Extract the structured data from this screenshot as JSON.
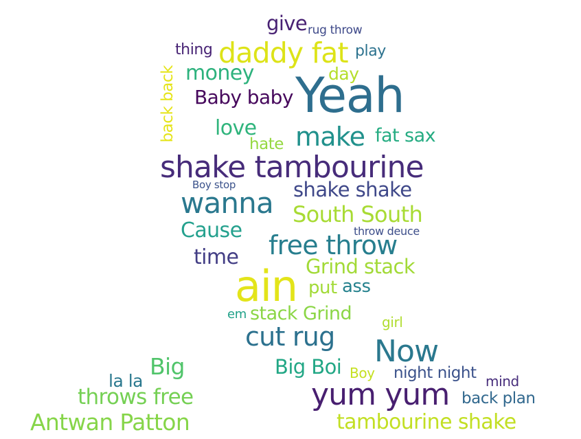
{
  "words": [
    {
      "text": "Yeah",
      "color": "#2e6e8e"
    },
    {
      "text": "ain",
      "color": "#e3e41a"
    },
    {
      "text": "shake tambourine",
      "color": "#472c7a"
    },
    {
      "text": "yum yum",
      "color": "#481f70"
    },
    {
      "text": "daddy fat",
      "color": "#dde318"
    },
    {
      "text": "wanna",
      "color": "#2a788e"
    },
    {
      "text": "free throw",
      "color": "#277e8e"
    },
    {
      "text": "Now",
      "color": "#2a788e"
    },
    {
      "text": "cut rug",
      "color": "#2c718e"
    },
    {
      "text": "make",
      "color": "#21918c"
    },
    {
      "text": "tambourine shake",
      "color": "#c2df23"
    },
    {
      "text": "Antwan Patton",
      "color": "#86d549"
    },
    {
      "text": "throws free",
      "color": "#75d054"
    },
    {
      "text": "South South",
      "color": "#a8db34"
    },
    {
      "text": "Grind stack",
      "color": "#a2da37"
    },
    {
      "text": "shake shake",
      "color": "#3f4889"
    },
    {
      "text": "money",
      "color": "#2db27d"
    },
    {
      "text": "Baby baby",
      "color": "#46085c"
    },
    {
      "text": "Cause",
      "color": "#25a18e"
    },
    {
      "text": "time",
      "color": "#433e85"
    },
    {
      "text": "love",
      "color": "#2fb47c"
    },
    {
      "text": "fat sax",
      "color": "#25ac82"
    },
    {
      "text": "Big",
      "color": "#50c46a"
    },
    {
      "text": "Big Boi",
      "color": "#22a785"
    },
    {
      "text": "stack Grind",
      "color": "#8bd646"
    },
    {
      "text": "give",
      "color": "#482173"
    },
    {
      "text": "thing",
      "color": "#482475"
    },
    {
      "text": "play",
      "color": "#2c728e"
    },
    {
      "text": "day",
      "color": "#b5de2b"
    },
    {
      "text": "hate",
      "color": "#95d840"
    },
    {
      "text": "back back",
      "color": "#e5e419"
    },
    {
      "text": "put",
      "color": "#a2da37"
    },
    {
      "text": "ass",
      "color": "#26828e"
    },
    {
      "text": "night night",
      "color": "#3b528b"
    },
    {
      "text": "back plan",
      "color": "#31688e"
    },
    {
      "text": "la la",
      "color": "#2a788e"
    },
    {
      "text": "mind",
      "color": "#472d7b"
    },
    {
      "text": "girl",
      "color": "#b0dd2f"
    },
    {
      "text": "Boy",
      "color": "#c5e021"
    },
    {
      "text": "em",
      "color": "#1fa088"
    },
    {
      "text": "rug throw",
      "color": "#3e4989"
    },
    {
      "text": "throw deuce",
      "color": "#3d4e8a"
    },
    {
      "text": "Boy stop",
      "color": "#3b528b"
    }
  ]
}
